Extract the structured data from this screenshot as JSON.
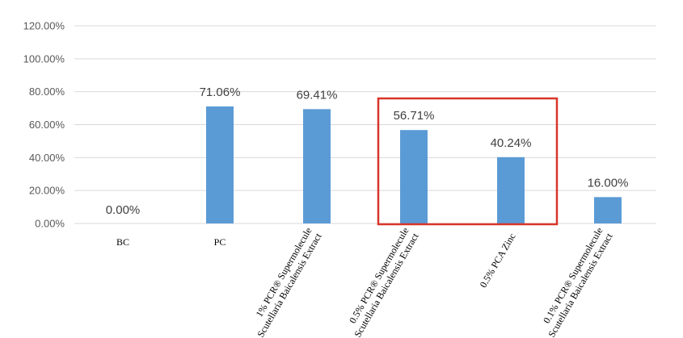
{
  "chart_data": {
    "type": "bar",
    "categories": [
      [
        "BC"
      ],
      [
        "PC"
      ],
      [
        "1% PCR® Supermolecule",
        "Scutellaria Baicalensis Extract"
      ],
      [
        "0.5% PCR® Supermolecule",
        "Scutellaria Baicalensis Extract"
      ],
      [
        "0.5% PCA Zinc"
      ],
      [
        "0.1% PCR® Supermolecule",
        "Scutellaria Baicalensis Extract"
      ]
    ],
    "values": [
      0.0,
      71.06,
      69.41,
      56.71,
      40.24,
      16.0
    ],
    "data_labels": [
      "0.00%",
      "71.06%",
      "69.41%",
      "56.71%",
      "40.24%",
      "16.00%"
    ],
    "y_ticks": [
      "0.00%",
      "20.00%",
      "40.00%",
      "60.00%",
      "80.00%",
      "100.00%",
      "120.00%"
    ],
    "ylim": [
      0,
      120
    ],
    "grid": true,
    "highlight_box_categories": [
      3,
      4
    ],
    "colors": {
      "bar": "#5b9bd5",
      "grid": "#d9d9d9",
      "highlight": "#d9352a"
    }
  }
}
